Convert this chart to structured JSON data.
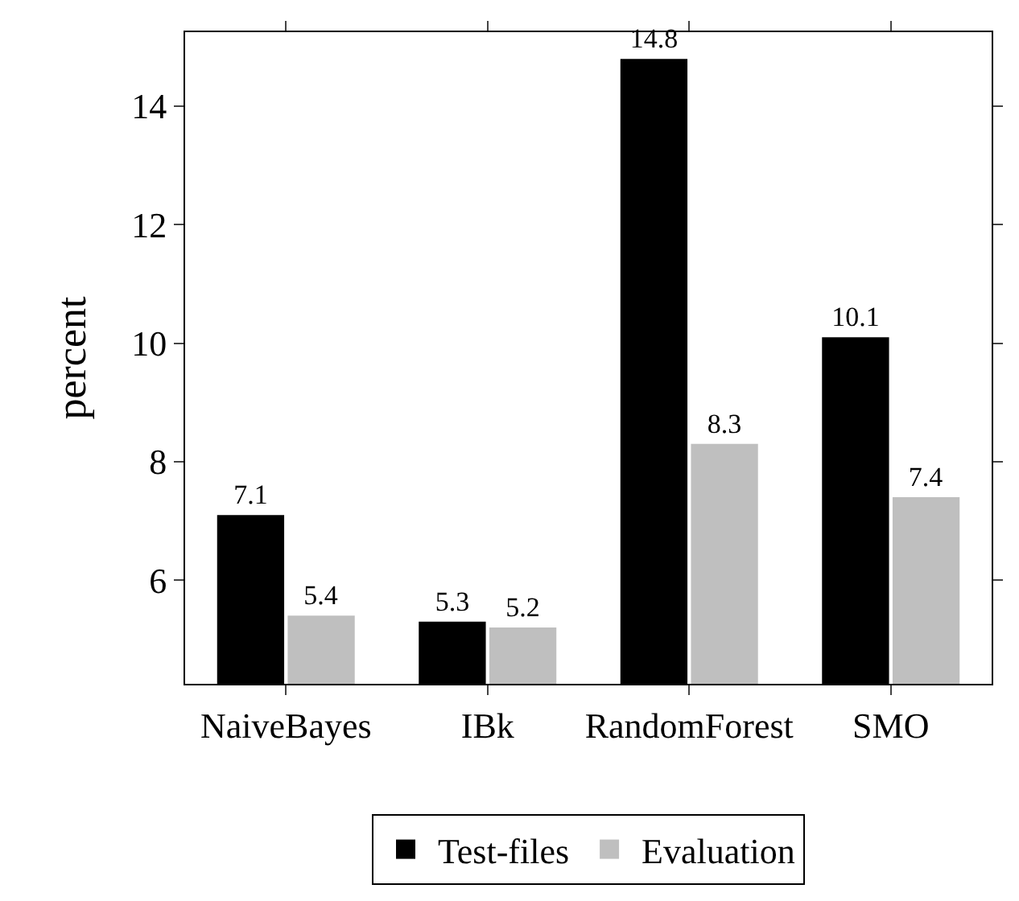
{
  "chart_data": {
    "type": "bar",
    "ylabel": "percent",
    "categories": [
      "NaiveBayes",
      "IBk",
      "RandomForest",
      "SMO"
    ],
    "series": [
      {
        "name": "Test-files",
        "color": "#000000",
        "values": [
          7.1,
          5.3,
          14.8,
          10.1
        ]
      },
      {
        "name": "Evaluation",
        "color": "#bfbfbf",
        "values": [
          5.4,
          5.2,
          8.3,
          7.4
        ]
      }
    ],
    "ylim": [
      4.25,
      15.25
    ],
    "yticks": [
      6,
      8,
      10,
      12,
      14
    ],
    "grid": false,
    "legend": "bottom",
    "data_labels": true
  }
}
